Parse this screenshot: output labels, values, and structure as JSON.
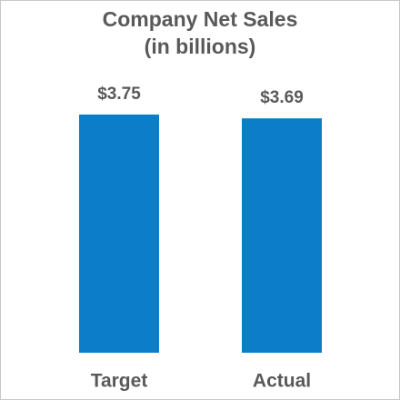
{
  "chart_data": {
    "type": "bar",
    "title": "Company Net Sales",
    "subtitle": "(in billions)",
    "categories": [
      "Target",
      "Actual"
    ],
    "values": [
      3.75,
      3.69
    ],
    "value_labels": [
      "$3.75",
      "$3.69"
    ],
    "color": "#0b7dc9"
  }
}
